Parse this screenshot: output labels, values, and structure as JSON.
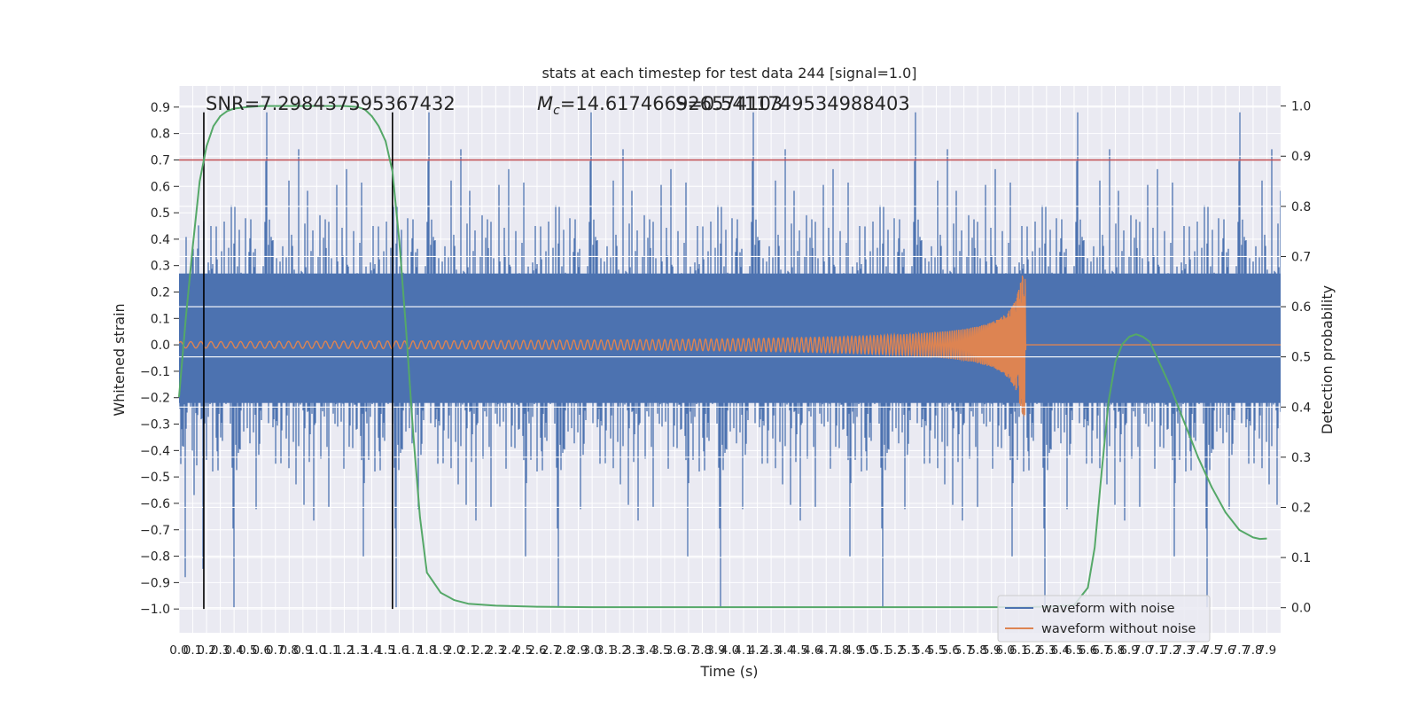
{
  "chart_data": {
    "type": "line",
    "title": "stats at each timestep for test data 244 [signal=1.0]",
    "xlabel": "Time (s)",
    "ylabel": "Whitened strain",
    "ylabel_right": "Detection probability",
    "xlim": [
      0.0,
      8.0
    ],
    "ylim": [
      -1.09,
      0.98
    ],
    "ylim_right": [
      -0.05,
      1.04
    ],
    "x_ticks": [
      "0.0",
      "0.1",
      "0.2",
      "0.3",
      "0.4",
      "0.5",
      "0.6",
      "0.7",
      "0.8",
      "0.9",
      "1.0",
      "1.1",
      "1.2",
      "1.3",
      "1.4",
      "1.5",
      "1.6",
      "1.7",
      "1.8",
      "1.9",
      "2.0",
      "2.1",
      "2.2",
      "2.3",
      "2.4",
      "2.5",
      "2.6",
      "2.7",
      "2.8",
      "2.9",
      "3.0",
      "3.1",
      "3.2",
      "3.3",
      "3.4",
      "3.5",
      "3.6",
      "3.7",
      "3.8",
      "3.9",
      "4.0",
      "4.1",
      "4.2",
      "4.3",
      "4.4",
      "4.5",
      "4.6",
      "4.7",
      "4.8",
      "4.9",
      "5.0",
      "5.1",
      "5.2",
      "5.3",
      "5.4",
      "5.5",
      "5.6",
      "5.7",
      "5.8",
      "5.9",
      "6.0",
      "6.1",
      "6.2",
      "6.3",
      "6.4",
      "6.5",
      "6.6",
      "6.7",
      "6.8",
      "6.9",
      "7.0",
      "7.1",
      "7.2",
      "7.3",
      "7.4",
      "7.5",
      "7.6",
      "7.7",
      "7.8",
      "7.9"
    ],
    "y_ticks": [
      "0.9",
      "0.8",
      "0.7",
      "0.6",
      "0.5",
      "0.4",
      "0.3",
      "0.2",
      "0.1",
      "0.0",
      "−0.1",
      "−0.2",
      "−0.3",
      "−0.4",
      "−0.5",
      "−0.6",
      "−0.7",
      "−0.8",
      "−0.9",
      "−1.0"
    ],
    "y_ticks_right": [
      "1.0",
      "0.9",
      "0.8",
      "0.7",
      "0.6",
      "0.5",
      "0.4",
      "0.3",
      "0.2",
      "0.1",
      "0.0"
    ],
    "threshold": 0.7,
    "vlines": [
      0.18,
      1.55
    ],
    "annotations": {
      "snr": "SNR=7.298437595367432",
      "mc": "=14.617466926574103",
      "mc_symbol": "M",
      "mc_sub": "c",
      "chi": "S=0.5411749534988403"
    },
    "series": [
      {
        "name": "waveform with noise",
        "color": "#4c72b0",
        "axis": "left",
        "noise_envelope": {
          "typical": 0.42,
          "extreme_max": 0.88,
          "extreme_min": -1.0
        }
      },
      {
        "name": "waveform without noise",
        "color": "#dd8452",
        "axis": "left",
        "chirp": {
          "amp_start": 0.012,
          "peak_time": 6.15,
          "peak_amp": 0.27
        }
      },
      {
        "name": "detection probability",
        "color": "#55a868",
        "axis": "right",
        "x": [
          0.0,
          0.05,
          0.1,
          0.15,
          0.2,
          0.25,
          0.3,
          0.35,
          0.4,
          0.5,
          0.6,
          0.8,
          1.0,
          1.2,
          1.3,
          1.35,
          1.4,
          1.45,
          1.5,
          1.55,
          1.6,
          1.65,
          1.7,
          1.75,
          1.8,
          1.9,
          2.0,
          2.1,
          2.3,
          2.6,
          3.0,
          4.0,
          5.0,
          6.0,
          6.3,
          6.5,
          6.6,
          6.65,
          6.7,
          6.75,
          6.8,
          6.85,
          6.9,
          6.95,
          7.0,
          7.05,
          7.1,
          7.2,
          7.3,
          7.4,
          7.5,
          7.6,
          7.7,
          7.8,
          7.85,
          7.9
        ],
        "y": [
          0.42,
          0.58,
          0.72,
          0.85,
          0.92,
          0.96,
          0.98,
          0.99,
          0.995,
          0.998,
          1.0,
          1.0,
          1.0,
          1.0,
          0.998,
          0.993,
          0.98,
          0.96,
          0.93,
          0.87,
          0.73,
          0.55,
          0.35,
          0.18,
          0.07,
          0.03,
          0.015,
          0.008,
          0.004,
          0.002,
          0.001,
          0.001,
          0.001,
          0.001,
          0.002,
          0.005,
          0.04,
          0.12,
          0.27,
          0.41,
          0.49,
          0.525,
          0.54,
          0.545,
          0.54,
          0.53,
          0.5,
          0.44,
          0.37,
          0.3,
          0.24,
          0.19,
          0.155,
          0.14,
          0.137,
          0.138
        ]
      }
    ],
    "legend": {
      "placement": "lower-right",
      "entries": [
        "waveform with noise",
        "waveform without noise"
      ]
    },
    "grid": true,
    "colors": {
      "background": "#eaeaf2",
      "grid": "#ffffff",
      "threshold": "#c44e52",
      "vline": "#000000"
    }
  }
}
